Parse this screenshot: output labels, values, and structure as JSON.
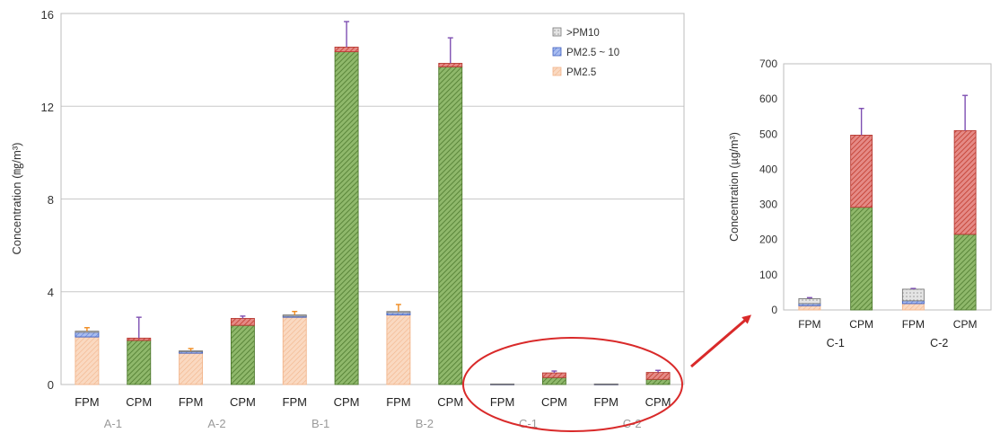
{
  "colors": {
    "pm25": "#f6c8a6",
    "pm25_10": "#7f9be0",
    "gt_pm10": "#cfcfcf",
    "cpm_lower": "#6f9a4a",
    "cpm_upper": "#d9534f",
    "err_orange": "#ef8a1f",
    "err_purple": "#7e4fb2",
    "highlight": "#d92a2a",
    "grid": "#c8c8c8"
  },
  "legend": {
    "items": [
      ">PM10",
      "PM2.5 ~ 10",
      "PM2.5"
    ]
  },
  "main_labels": {
    "ylabel": "Concentration (㎎/m³)",
    "yticks": [
      "0",
      "4",
      "8",
      "12",
      "16"
    ]
  },
  "inset_labels": {
    "ylabel": "Concentration (µg/m³)",
    "yticks": [
      "0",
      "100",
      "200",
      "300",
      "400",
      "500",
      "600",
      "700"
    ]
  },
  "chart_data": [
    {
      "type": "bar",
      "stacked": true,
      "ylabel": "Concentration (㎎/m³)",
      "ylim": [
        0,
        16
      ],
      "yticks": [
        0,
        4,
        8,
        12,
        16
      ],
      "grid": true,
      "legend_position": "top-right",
      "groups": [
        "A-1",
        "A-2",
        "B-1",
        "B-2",
        "C-1",
        "C-2"
      ],
      "categories": [
        "FPM",
        "CPM",
        "FPM",
        "CPM",
        "FPM",
        "CPM",
        "FPM",
        "CPM",
        "FPM",
        "CPM",
        "FPM",
        "CPM"
      ],
      "series": [
        {
          "name": "PM2.5",
          "values": [
            2.05,
            null,
            1.35,
            null,
            2.9,
            null,
            3.0,
            null,
            0.01,
            null,
            0.01,
            null
          ]
        },
        {
          "name": "PM2.5 ~ 10",
          "values": [
            0.2,
            null,
            0.08,
            null,
            0.05,
            null,
            0.1,
            null,
            0.005,
            null,
            0.005,
            null
          ]
        },
        {
          "name": ">PM10",
          "values": [
            0.05,
            null,
            0.02,
            null,
            0.05,
            null,
            0.05,
            null,
            0.01,
            null,
            0.01,
            null
          ]
        },
        {
          "values": [
            null,
            1.9,
            null,
            2.55,
            null,
            14.35,
            null,
            13.7,
            null,
            0.3,
            null,
            0.22
          ]
        },
        {
          "values": [
            null,
            0.1,
            null,
            0.3,
            null,
            0.2,
            null,
            0.15,
            null,
            0.2,
            null,
            0.3
          ]
        }
      ],
      "totals": [
        2.3,
        2.0,
        1.45,
        2.85,
        3.0,
        14.55,
        3.15,
        13.85,
        0.025,
        0.5,
        0.025,
        0.52
      ],
      "error_upper": [
        2.45,
        2.9,
        1.55,
        2.95,
        3.15,
        15.65,
        3.45,
        14.95,
        0.04,
        0.58,
        0.04,
        0.61
      ],
      "highlight": [
        "C-1",
        "C-2"
      ]
    },
    {
      "type": "bar",
      "stacked": true,
      "ylabel": "Concentration (µg/m³)",
      "ylim": [
        0,
        700
      ],
      "yticks": [
        0,
        100,
        200,
        300,
        400,
        500,
        600,
        700
      ],
      "grid": false,
      "groups": [
        "C-1",
        "C-2"
      ],
      "categories": [
        "FPM",
        "CPM",
        "FPM",
        "CPM"
      ],
      "series": [
        {
          "name": "PM2.5",
          "values": [
            12,
            null,
            18,
            null
          ]
        },
        {
          "name": "PM2.5 ~ 10",
          "values": [
            6,
            null,
            8,
            null
          ]
        },
        {
          "name": ">PM10",
          "values": [
            14,
            null,
            33,
            null
          ]
        },
        {
          "values": [
            null,
            292,
            null,
            215
          ]
        },
        {
          "values": [
            null,
            205,
            null,
            295
          ]
        }
      ],
      "totals": [
        32,
        497,
        59,
        510
      ],
      "error_upper": [
        35,
        573,
        61,
        610
      ]
    }
  ]
}
